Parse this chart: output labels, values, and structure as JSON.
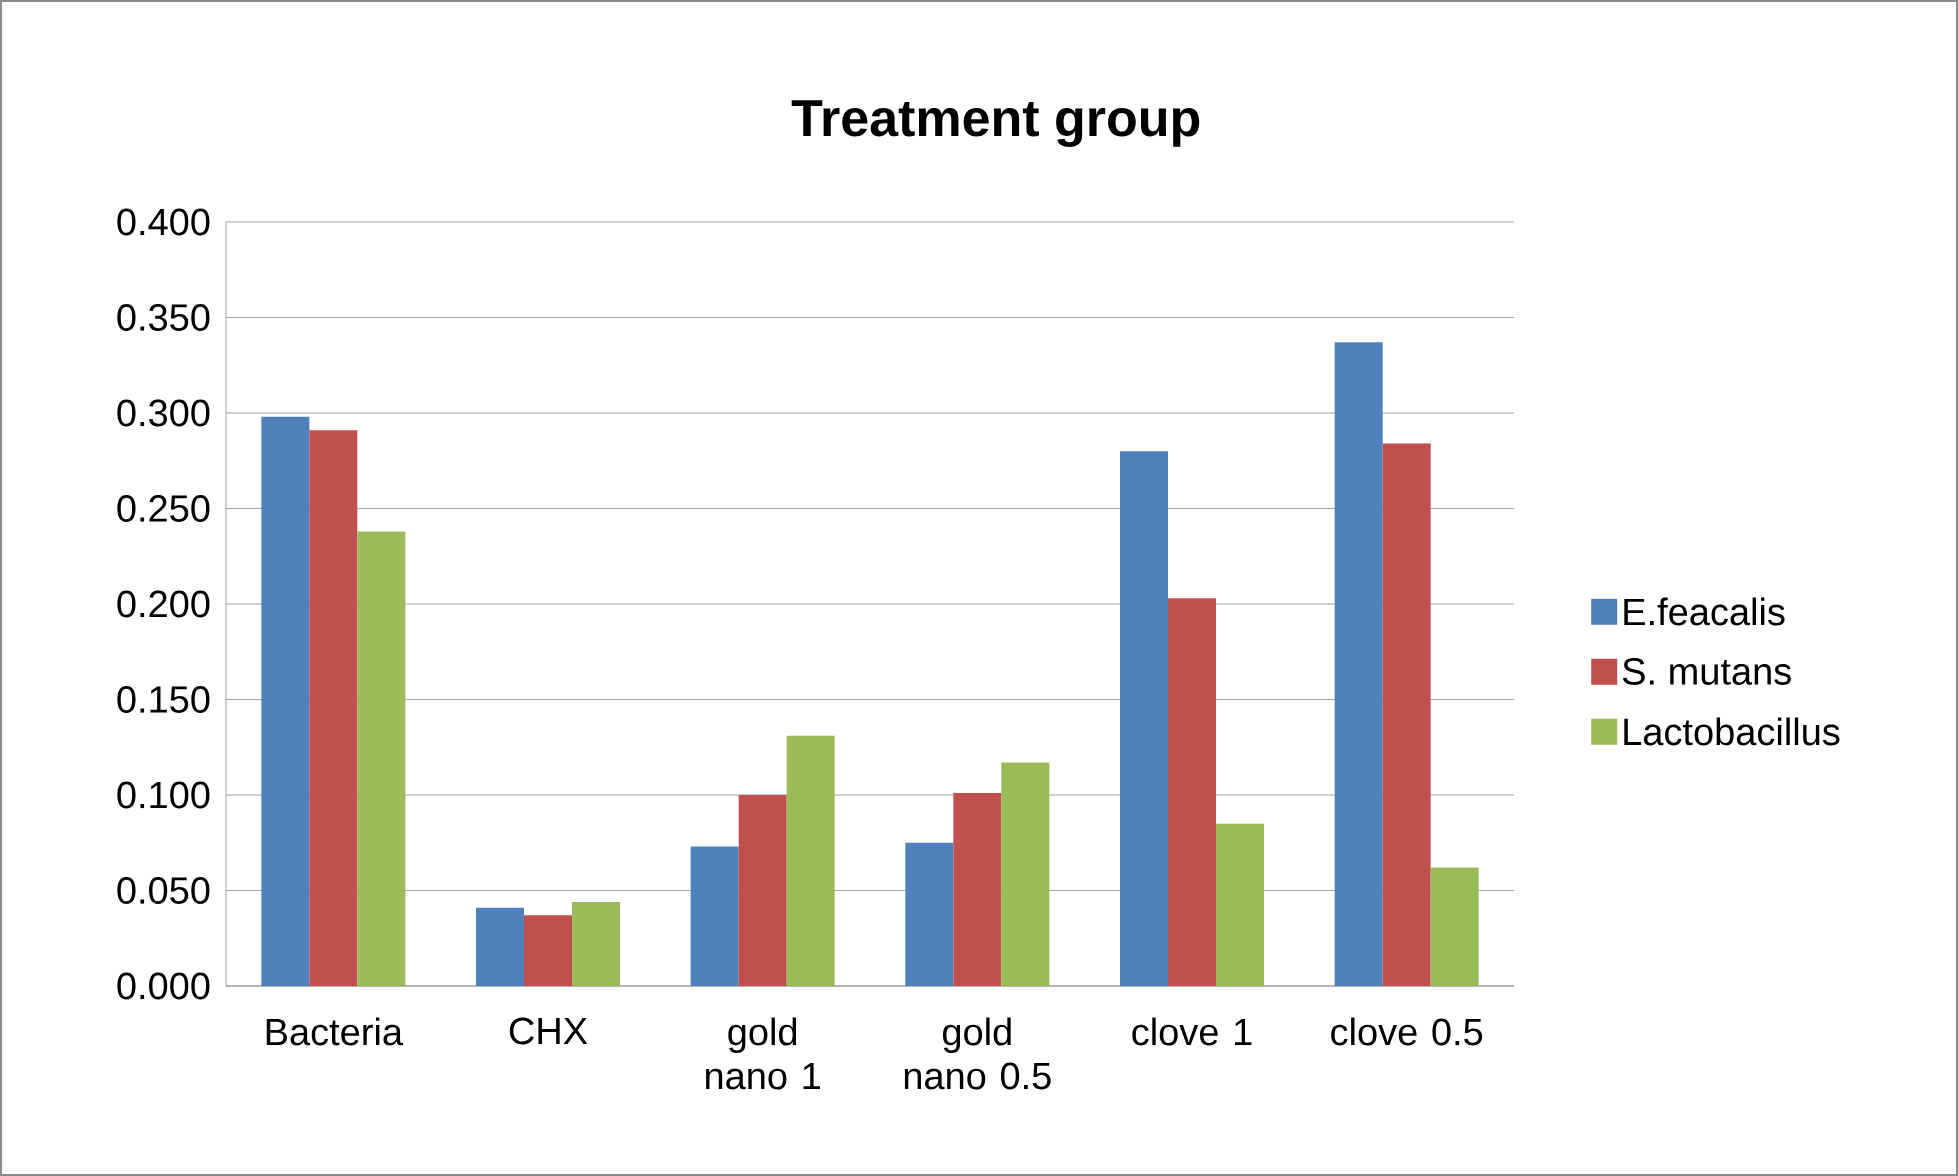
{
  "chart_data": {
    "type": "bar",
    "title": "Treatment group",
    "categories": [
      "Bacteria",
      "CHX",
      "gold nano 1",
      "gold nano 0.5",
      "clove 1",
      "clove 0.5"
    ],
    "series": [
      {
        "name": "E.feacalis",
        "color": "#4f81bd",
        "values": [
          0.298,
          0.041,
          0.073,
          0.075,
          0.28,
          0.337
        ]
      },
      {
        "name": "S. mutans",
        "color": "#c0504d",
        "values": [
          0.291,
          0.037,
          0.1,
          0.101,
          0.203,
          0.284
        ]
      },
      {
        "name": "Lactobacillus",
        "color": "#9bbb59",
        "values": [
          0.238,
          0.044,
          0.131,
          0.117,
          0.085,
          0.062
        ]
      }
    ],
    "ylim": [
      0,
      0.4
    ],
    "yticks": [
      {
        "value": 0,
        "label": "0.000"
      },
      {
        "value": 0.05,
        "label": "0.050"
      },
      {
        "value": 0.1,
        "label": "0.100"
      },
      {
        "value": 0.15,
        "label": "0.150"
      },
      {
        "value": 0.2,
        "label": "0.200"
      },
      {
        "value": 0.25,
        "label": "0.250"
      },
      {
        "value": 0.3,
        "label": "0.300"
      },
      {
        "value": 0.35,
        "label": "0.350"
      },
      {
        "value": 0.4,
        "label": "0.400"
      }
    ],
    "grid": "y",
    "legend": "right"
  }
}
